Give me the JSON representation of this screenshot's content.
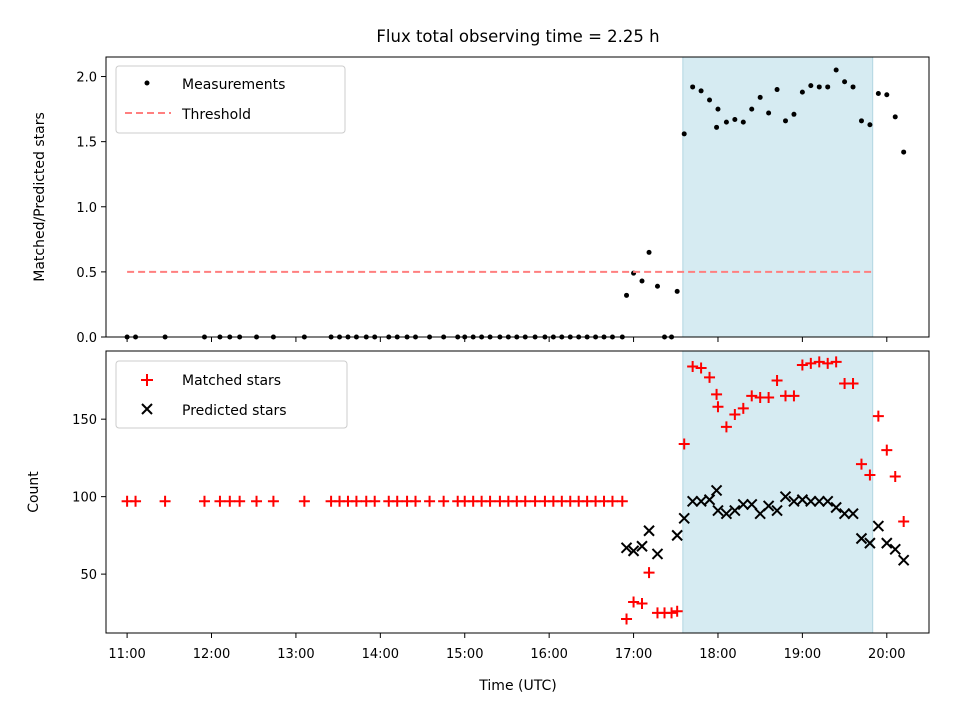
{
  "chart_data": {
    "title": "Flux total observing time = 2.25 h",
    "xlabel": "Time (UTC)",
    "x_ticks": [
      "11:00",
      "12:00",
      "13:00",
      "14:00",
      "15:00",
      "16:00",
      "17:00",
      "18:00",
      "19:00",
      "20:00"
    ],
    "xlim": [
      "10:45",
      "20:30"
    ],
    "shaded_region": {
      "start": "17:35",
      "end": "19:50",
      "color": "#add8e6"
    },
    "panels": [
      {
        "type": "scatter",
        "ylabel": "Matched/Predicted stars",
        "ylim": [
          0,
          2.15
        ],
        "y_ticks": [
          0.0,
          0.5,
          1.0,
          1.5,
          2.0
        ],
        "y_tick_labels": [
          "0.0",
          "0.5",
          "1.0",
          "1.5",
          "2.0"
        ],
        "legend": {
          "position": "upper left"
        },
        "series": [
          {
            "name": "Measurements",
            "marker": "dot",
            "color": "#000000",
            "points": [
              [
                "11:00",
                0
              ],
              [
                "11:06",
                0
              ],
              [
                "11:27",
                0
              ],
              [
                "11:55",
                0
              ],
              [
                "12:06",
                0
              ],
              [
                "12:13",
                0
              ],
              [
                "12:20",
                0
              ],
              [
                "12:32",
                0
              ],
              [
                "12:44",
                0
              ],
              [
                "13:06",
                0
              ],
              [
                "13:25",
                0
              ],
              [
                "13:31",
                0
              ],
              [
                "13:37",
                0
              ],
              [
                "13:43",
                0
              ],
              [
                "13:50",
                0
              ],
              [
                "13:56",
                0
              ],
              [
                "14:06",
                0
              ],
              [
                "14:12",
                0
              ],
              [
                "14:19",
                0
              ],
              [
                "14:25",
                0
              ],
              [
                "14:35",
                0
              ],
              [
                "14:45",
                0
              ],
              [
                "14:55",
                0
              ],
              [
                "15:00",
                0
              ],
              [
                "15:06",
                0
              ],
              [
                "15:12",
                0
              ],
              [
                "15:18",
                0
              ],
              [
                "15:25",
                0
              ],
              [
                "15:31",
                0
              ],
              [
                "15:37",
                0
              ],
              [
                "15:43",
                0
              ],
              [
                "15:50",
                0
              ],
              [
                "15:57",
                0
              ],
              [
                "16:03",
                0
              ],
              [
                "16:09",
                0
              ],
              [
                "16:15",
                0
              ],
              [
                "16:21",
                0
              ],
              [
                "16:27",
                0
              ],
              [
                "16:33",
                0
              ],
              [
                "16:39",
                0
              ],
              [
                "16:45",
                0
              ],
              [
                "16:52",
                0
              ],
              [
                "16:55",
                0.32
              ],
              [
                "17:00",
                0.49
              ],
              [
                "17:06",
                0.43
              ],
              [
                "17:11",
                0.65
              ],
              [
                "17:17",
                0.39
              ],
              [
                "17:22",
                0
              ],
              [
                "17:27",
                0
              ],
              [
                "17:31",
                0.35
              ],
              [
                "17:36",
                1.56
              ],
              [
                "17:42",
                1.92
              ],
              [
                "17:48",
                1.89
              ],
              [
                "17:54",
                1.82
              ],
              [
                "17:59",
                1.61
              ],
              [
                "18:00",
                1.75
              ],
              [
                "18:06",
                1.65
              ],
              [
                "18:12",
                1.67
              ],
              [
                "18:18",
                1.65
              ],
              [
                "18:24",
                1.75
              ],
              [
                "18:30",
                1.84
              ],
              [
                "18:36",
                1.72
              ],
              [
                "18:42",
                1.9
              ],
              [
                "18:48",
                1.66
              ],
              [
                "18:54",
                1.71
              ],
              [
                "19:00",
                1.88
              ],
              [
                "19:06",
                1.93
              ],
              [
                "19:12",
                1.92
              ],
              [
                "19:18",
                1.92
              ],
              [
                "19:24",
                2.05
              ],
              [
                "19:30",
                1.96
              ],
              [
                "19:36",
                1.92
              ],
              [
                "19:42",
                1.66
              ],
              [
                "19:48",
                1.63
              ],
              [
                "19:54",
                1.87
              ],
              [
                "20:00",
                1.86
              ],
              [
                "20:06",
                1.69
              ],
              [
                "20:12",
                1.42
              ]
            ]
          },
          {
            "name": "Threshold",
            "marker": "dashed-line",
            "color": "#ff7f7f",
            "points": [
              [
                "11:00",
                0.5
              ],
              [
                "19:50",
                0.5
              ]
            ]
          }
        ]
      },
      {
        "type": "scatter",
        "ylabel": "Count",
        "ylim": [
          12,
          194
        ],
        "y_ticks": [
          50,
          100,
          150
        ],
        "y_tick_labels": [
          "50",
          "100",
          "150"
        ],
        "legend": {
          "position": "upper left"
        },
        "series": [
          {
            "name": "Matched stars",
            "marker": "plus",
            "color": "#ff0000",
            "points": [
              [
                "11:00",
                97
              ],
              [
                "11:06",
                97
              ],
              [
                "11:27",
                97
              ],
              [
                "11:55",
                97
              ],
              [
                "12:06",
                97
              ],
              [
                "12:13",
                97
              ],
              [
                "12:20",
                97
              ],
              [
                "12:32",
                97
              ],
              [
                "12:44",
                97
              ],
              [
                "13:06",
                97
              ],
              [
                "13:25",
                97
              ],
              [
                "13:31",
                97
              ],
              [
                "13:37",
                97
              ],
              [
                "13:43",
                97
              ],
              [
                "13:50",
                97
              ],
              [
                "13:56",
                97
              ],
              [
                "14:06",
                97
              ],
              [
                "14:12",
                97
              ],
              [
                "14:19",
                97
              ],
              [
                "14:25",
                97
              ],
              [
                "14:35",
                97
              ],
              [
                "14:45",
                97
              ],
              [
                "14:55",
                97
              ],
              [
                "15:00",
                97
              ],
              [
                "15:06",
                97
              ],
              [
                "15:12",
                97
              ],
              [
                "15:18",
                97
              ],
              [
                "15:25",
                97
              ],
              [
                "15:31",
                97
              ],
              [
                "15:37",
                97
              ],
              [
                "15:43",
                97
              ],
              [
                "15:50",
                97
              ],
              [
                "15:57",
                97
              ],
              [
                "16:03",
                97
              ],
              [
                "16:09",
                97
              ],
              [
                "16:15",
                97
              ],
              [
                "16:21",
                97
              ],
              [
                "16:27",
                97
              ],
              [
                "16:33",
                97
              ],
              [
                "16:39",
                97
              ],
              [
                "16:45",
                97
              ],
              [
                "16:52",
                97
              ],
              [
                "16:55",
                21
              ],
              [
                "17:00",
                32
              ],
              [
                "17:06",
                31
              ],
              [
                "17:11",
                51
              ],
              [
                "17:17",
                25
              ],
              [
                "17:22",
                25
              ],
              [
                "17:27",
                25
              ],
              [
                "17:31",
                26
              ],
              [
                "17:36",
                134
              ],
              [
                "17:42",
                184
              ],
              [
                "17:48",
                183
              ],
              [
                "17:54",
                177
              ],
              [
                "17:59",
                166
              ],
              [
                "18:00",
                158
              ],
              [
                "18:06",
                145
              ],
              [
                "18:12",
                153
              ],
              [
                "18:18",
                157
              ],
              [
                "18:24",
                165
              ],
              [
                "18:30",
                164
              ],
              [
                "18:36",
                164
              ],
              [
                "18:42",
                175
              ],
              [
                "18:48",
                165
              ],
              [
                "18:54",
                165
              ],
              [
                "19:00",
                185
              ],
              [
                "19:06",
                186
              ],
              [
                "19:12",
                187
              ],
              [
                "19:18",
                186
              ],
              [
                "19:24",
                187
              ],
              [
                "19:30",
                173
              ],
              [
                "19:36",
                173
              ],
              [
                "19:42",
                121
              ],
              [
                "19:48",
                114
              ],
              [
                "19:54",
                152
              ],
              [
                "20:00",
                130
              ],
              [
                "20:06",
                113
              ],
              [
                "20:12",
                84
              ]
            ]
          },
          {
            "name": "Predicted stars",
            "marker": "x",
            "color": "#000000",
            "points": [
              [
                "16:55",
                67
              ],
              [
                "17:00",
                65
              ],
              [
                "17:06",
                68
              ],
              [
                "17:11",
                78
              ],
              [
                "17:17",
                63
              ],
              [
                "17:31",
                75
              ],
              [
                "17:36",
                86
              ],
              [
                "17:42",
                97
              ],
              [
                "17:48",
                97
              ],
              [
                "17:54",
                98
              ],
              [
                "17:59",
                104
              ],
              [
                "18:00",
                91
              ],
              [
                "18:06",
                89
              ],
              [
                "18:12",
                91
              ],
              [
                "18:18",
                95
              ],
              [
                "18:24",
                95
              ],
              [
                "18:30",
                89
              ],
              [
                "18:36",
                94
              ],
              [
                "18:42",
                91
              ],
              [
                "18:48",
                100
              ],
              [
                "18:54",
                97
              ],
              [
                "19:00",
                98
              ],
              [
                "19:06",
                97
              ],
              [
                "19:12",
                97
              ],
              [
                "19:18",
                97
              ],
              [
                "19:24",
                93
              ],
              [
                "19:30",
                89
              ],
              [
                "19:36",
                89
              ],
              [
                "19:42",
                73
              ],
              [
                "19:48",
                70
              ],
              [
                "19:54",
                81
              ],
              [
                "20:00",
                70
              ],
              [
                "20:06",
                66
              ],
              [
                "20:12",
                59
              ]
            ]
          }
        ]
      }
    ]
  }
}
